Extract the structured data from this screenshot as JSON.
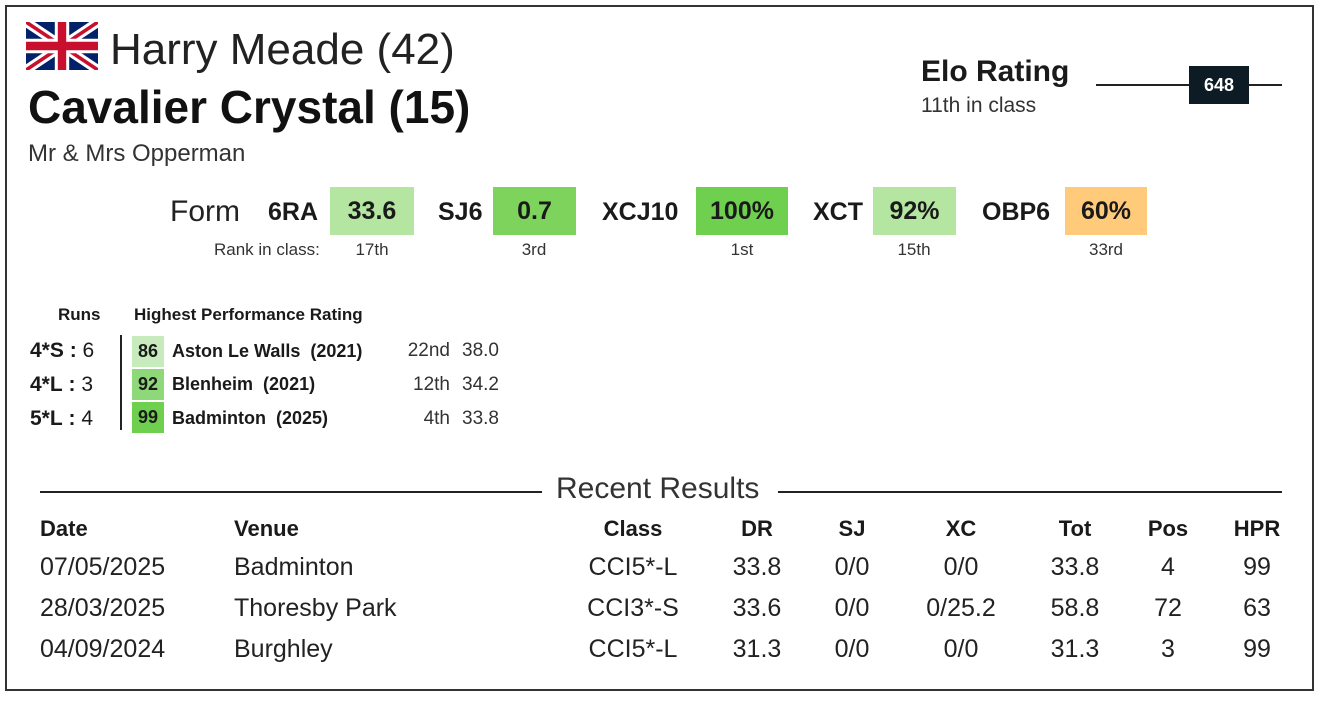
{
  "rider": "Harry Meade (42)",
  "horse": "Cavalier Crystal (15)",
  "owner": "Mr & Mrs Opperman",
  "flag_icon": "uk-flag-icon",
  "elo": {
    "title": "Elo Rating",
    "subtitle": "11th in class",
    "value": "648"
  },
  "form": {
    "label": "Form",
    "rank_label": "Rank in class:",
    "metrics": [
      {
        "name": "6RA",
        "value": "33.6",
        "rank": "17th",
        "color": "#b4e6a2"
      },
      {
        "name": "SJ6",
        "value": "0.7",
        "rank": "3rd",
        "color": "#7dd35b"
      },
      {
        "name": "XCJ10",
        "value": "100%",
        "rank": "1st",
        "color": "#6fcf4f"
      },
      {
        "name": "XCT",
        "value": "92%",
        "rank": "15th",
        "color": "#b4e6a2"
      },
      {
        "name": "OBP6",
        "value": "60%",
        "rank": "33rd",
        "color": "#ffca7a"
      }
    ]
  },
  "runs": {
    "header": "Runs",
    "hpr_header": "Highest Performance Rating",
    "rows": [
      {
        "level": "4*S",
        "sep": ":",
        "count": "6",
        "hpr": "86",
        "venue": "Aston Le Walls",
        "year": "(2021)",
        "pos": "22nd",
        "score": "38.0",
        "color": "#c8ebbd"
      },
      {
        "level": "4*L",
        "sep": ":",
        "count": "3",
        "hpr": "92",
        "venue": "Blenheim",
        "year": "(2021)",
        "pos": "12th",
        "score": "34.2",
        "color": "#8fd87a"
      },
      {
        "level": "5*L",
        "sep": ":",
        "count": "4",
        "hpr": "99",
        "venue": "Badminton",
        "year": "(2025)",
        "pos": "4th",
        "score": "33.8",
        "color": "#6fcf4f"
      }
    ]
  },
  "recent": {
    "title": "Recent Results",
    "headers": {
      "date": "Date",
      "venue": "Venue",
      "class": "Class",
      "dr": "DR",
      "sj": "SJ",
      "xc": "XC",
      "tot": "Tot",
      "pos": "Pos",
      "hpr": "HPR"
    },
    "rows": [
      {
        "date": "07/05/2025",
        "venue": "Badminton",
        "class": "CCI5*-L",
        "dr": "33.8",
        "sj": "0/0",
        "xc": "0/0",
        "tot": "33.8",
        "pos": "4",
        "hpr": "99"
      },
      {
        "date": "28/03/2025",
        "venue": "Thoresby Park",
        "class": "CCI3*-S",
        "dr": "33.6",
        "sj": "0/0",
        "xc": "0/25.2",
        "tot": "58.8",
        "pos": "72",
        "hpr": "63"
      },
      {
        "date": "04/09/2024",
        "venue": "Burghley",
        "class": "CCI5*-L",
        "dr": "31.3",
        "sj": "0/0",
        "xc": "0/0",
        "tot": "31.3",
        "pos": "3",
        "hpr": "99"
      }
    ]
  }
}
